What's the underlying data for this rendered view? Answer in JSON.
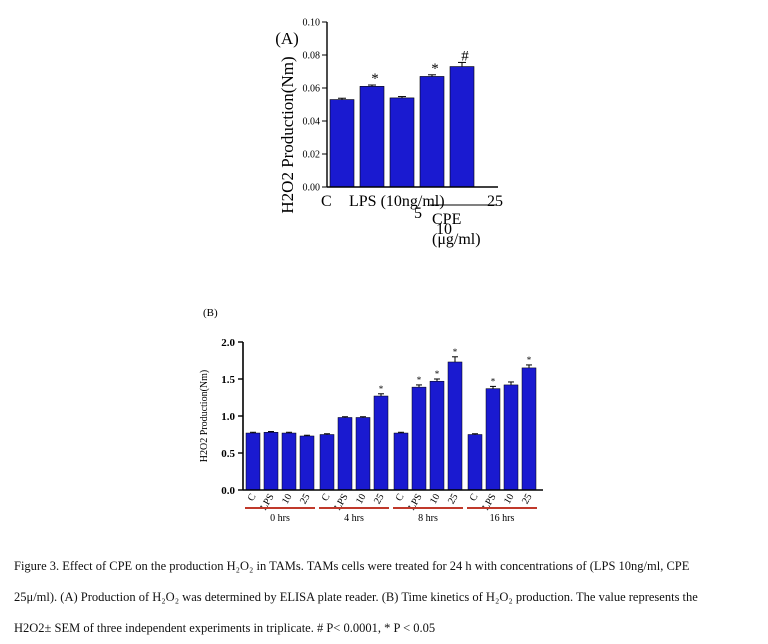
{
  "panel_b_label": "(B)",
  "caption": {
    "line1": "Figure 3. Effect of CPE on the production H₂O₂ in TAMs. TAMs cells were treated for 24 h with concentrations of (LPS 10ng/ml, CPE",
    "line2": "25μ/ml). (A) Production of H₂O₂ was determined by ELISA plate reader. (B) Time kinetics of H₂O₂ production. The value represents the",
    "line3": "H2O2± SEM of three independent experiments in triplicate. # P< 0.0001, * P < 0.05"
  },
  "colors": {
    "bar": "#1a1ad0",
    "bar_edge": "#000000",
    "underline_b": "#c0392b"
  },
  "chart_data": [
    {
      "id": "A",
      "type": "bar",
      "panel_label": "(A)",
      "ylabel": "H2O2 Production(Nm)",
      "ylim": [
        0,
        0.1
      ],
      "yticks": [
        0,
        0.02,
        0.04,
        0.06,
        0.08,
        0.1
      ],
      "ytick_labels": [
        "0.00",
        "0.02",
        "0.04",
        "0.06",
        "0.08",
        "0.10"
      ],
      "categories": [
        "C",
        "LPS (10ng/ml)",
        "5",
        "10",
        "25"
      ],
      "values": [
        0.053,
        0.061,
        0.054,
        0.067,
        0.073
      ],
      "errors": [
        0.0008,
        0.0008,
        0.0008,
        0.001,
        0.0025
      ],
      "annotations": [
        "",
        "*",
        "",
        "*",
        "#"
      ],
      "group_label": "CPE (μg/ml)"
    },
    {
      "id": "B",
      "type": "bar",
      "ylabel": "H2O2 Production(Nm)",
      "ylim": [
        0,
        2.0
      ],
      "yticks": [
        0,
        0.5,
        1.0,
        1.5,
        2.0
      ],
      "ytick_labels": [
        "0.0",
        "0.5",
        "1.0",
        "1.5",
        "2.0"
      ],
      "categories": [
        "C",
        "LPS",
        "10",
        "25",
        "C",
        "LPS",
        "10",
        "25",
        "C",
        "LPS",
        "10",
        "25",
        "C",
        "LPS",
        "10",
        "25"
      ],
      "values": [
        0.77,
        0.78,
        0.77,
        0.73,
        0.75,
        0.98,
        0.98,
        1.27,
        0.77,
        1.39,
        1.47,
        1.73,
        0.75,
        1.37,
        1.42,
        1.65
      ],
      "errors": [
        0.01,
        0.01,
        0.01,
        0.01,
        0.01,
        0.01,
        0.01,
        0.03,
        0.01,
        0.03,
        0.03,
        0.07,
        0.01,
        0.03,
        0.04,
        0.04
      ],
      "annotations": [
        "",
        "",
        "",
        "",
        "",
        "",
        "",
        "*",
        "",
        "*",
        "*",
        "*",
        "",
        "*",
        "",
        "*"
      ],
      "groups": [
        "0 hrs",
        "4 hrs",
        "8 hrs",
        "16 hrs"
      ]
    }
  ]
}
